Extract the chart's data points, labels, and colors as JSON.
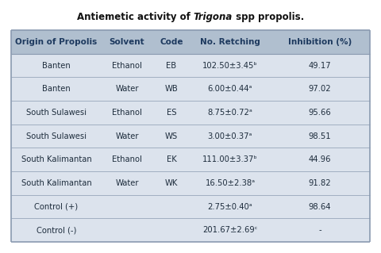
{
  "title_plain": "Antiemetic activity of ",
  "title_italic": "Trigona",
  "title_rest": " spp propolis.",
  "headers": [
    "Origin of Propolis",
    "Solvent",
    "Code",
    "No. Retching",
    "Inhibition (%)"
  ],
  "rows": [
    [
      "Banten",
      "Ethanol",
      "EB",
      "102.50±3.45ᵇ",
      "49.17"
    ],
    [
      "Banten",
      "Water",
      "WB",
      "6.00±0.44ᵃ",
      "97.02"
    ],
    [
      "South Sulawesi",
      "Ethanol",
      "ES",
      "8.75±0.72ᵃ",
      "95.66"
    ],
    [
      "South Sulawesi",
      "Water",
      "WS",
      "3.00±0.37ᵃ",
      "98.51"
    ],
    [
      "South Kalimantan",
      "Ethanol",
      "EK",
      "111.00±3.37ᵇ",
      "44.96"
    ],
    [
      "South Kalimantan",
      "Water",
      "WK",
      "16.50±2.38ᵃ",
      "91.82"
    ],
    [
      "Control (+)",
      "",
      "",
      "2.75±0.40ᵃ",
      "98.64"
    ],
    [
      "Control (-)",
      "",
      "",
      "201.67±2.69ᶜ",
      "-"
    ]
  ],
  "header_bg": "#b0bfcf",
  "row_bg_light": "#dce3ed",
  "row_bg_medium": "#cdd5e3",
  "outer_bg": "#ffffff",
  "header_text_color": "#1e3a5f",
  "row_text_color": "#1e2d3d",
  "border_color": "#8a9ab0",
  "title_color": "#111111",
  "title_fontsize": 8.5,
  "header_fontsize": 7.5,
  "cell_fontsize": 7.2
}
